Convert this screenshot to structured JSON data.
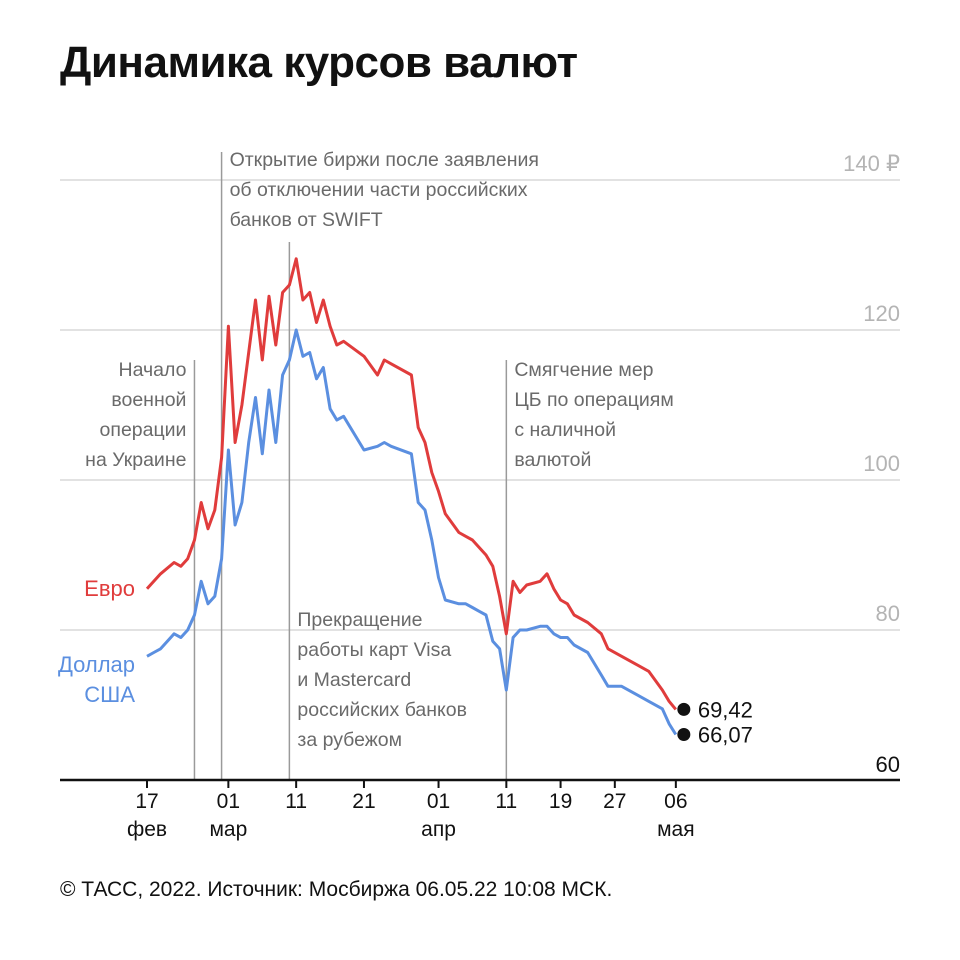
{
  "title": "Динамика курсов валют",
  "footer": "© ТАСС, 2022. Источник: Мосбиржа 06.05.22 10:08 МСК.",
  "colors": {
    "euro": "#e03c3c",
    "usd": "#5b8fe0",
    "grid": "#d8d8d8",
    "vline": "#9a9a9a",
    "axis": "#111111"
  },
  "chart_data": {
    "type": "line",
    "ylim": [
      60,
      140
    ],
    "yticks": [
      {
        "value": 140,
        "label": "140 ₽"
      },
      {
        "value": 120,
        "label": "120"
      },
      {
        "value": 100,
        "label": "100"
      },
      {
        "value": 80,
        "label": "80"
      },
      {
        "value": 60,
        "label": "60"
      }
    ],
    "xlim": [
      "2022-02-14",
      "2022-05-20"
    ],
    "xticks": [
      {
        "date": "2022-02-17",
        "day": "17",
        "month": "фев"
      },
      {
        "date": "2022-03-01",
        "day": "01",
        "month": "мар"
      },
      {
        "date": "2022-03-11",
        "day": "11",
        "month": ""
      },
      {
        "date": "2022-03-21",
        "day": "21",
        "month": ""
      },
      {
        "date": "2022-04-01",
        "day": "01",
        "month": "апр"
      },
      {
        "date": "2022-04-11",
        "day": "11",
        "month": ""
      },
      {
        "date": "2022-04-19",
        "day": "19",
        "month": ""
      },
      {
        "date": "2022-04-27",
        "day": "27",
        "month": ""
      },
      {
        "date": "2022-05-06",
        "day": "06",
        "month": "мая"
      }
    ],
    "series": [
      {
        "name": "Евро",
        "color": "#e03c3c",
        "end_label": "69,42",
        "points": [
          [
            "2022-02-17",
            85.5
          ],
          [
            "2022-02-18",
            86.5
          ],
          [
            "2022-02-19",
            87.5
          ],
          [
            "2022-02-21",
            89.0
          ],
          [
            "2022-02-22",
            88.5
          ],
          [
            "2022-02-23",
            89.5
          ],
          [
            "2022-02-24",
            92.0
          ],
          [
            "2022-02-25",
            97.0
          ],
          [
            "2022-02-26",
            93.5
          ],
          [
            "2022-02-27",
            96.0
          ],
          [
            "2022-02-28",
            103.0
          ],
          [
            "2022-03-01",
            120.5
          ],
          [
            "2022-03-02",
            105.0
          ],
          [
            "2022-03-03",
            110.0
          ],
          [
            "2022-03-04",
            117.0
          ],
          [
            "2022-03-05",
            124.0
          ],
          [
            "2022-03-06",
            116.0
          ],
          [
            "2022-03-07",
            124.5
          ],
          [
            "2022-03-08",
            118.0
          ],
          [
            "2022-03-09",
            125.0
          ],
          [
            "2022-03-10",
            126.0
          ],
          [
            "2022-03-11",
            129.5
          ],
          [
            "2022-03-12",
            124.0
          ],
          [
            "2022-03-13",
            125.0
          ],
          [
            "2022-03-14",
            121.0
          ],
          [
            "2022-03-15",
            124.0
          ],
          [
            "2022-03-16",
            120.5
          ],
          [
            "2022-03-17",
            118.0
          ],
          [
            "2022-03-18",
            118.5
          ],
          [
            "2022-03-21",
            116.5
          ],
          [
            "2022-03-23",
            114.0
          ],
          [
            "2022-03-24",
            116.0
          ],
          [
            "2022-03-25",
            115.5
          ],
          [
            "2022-03-28",
            114.0
          ],
          [
            "2022-03-29",
            107.0
          ],
          [
            "2022-03-30",
            105.0
          ],
          [
            "2022-03-31",
            101.0
          ],
          [
            "2022-04-01",
            98.5
          ],
          [
            "2022-04-02",
            95.5
          ],
          [
            "2022-04-04",
            93.0
          ],
          [
            "2022-04-05",
            92.5
          ],
          [
            "2022-04-06",
            92.0
          ],
          [
            "2022-04-07",
            91.0
          ],
          [
            "2022-04-08",
            90.0
          ],
          [
            "2022-04-09",
            88.5
          ],
          [
            "2022-04-10",
            84.5
          ],
          [
            "2022-04-11",
            79.5
          ],
          [
            "2022-04-12",
            86.5
          ],
          [
            "2022-04-13",
            85.0
          ],
          [
            "2022-04-14",
            86.0
          ],
          [
            "2022-04-16",
            86.5
          ],
          [
            "2022-04-17",
            87.5
          ],
          [
            "2022-04-18",
            85.5
          ],
          [
            "2022-04-19",
            84.0
          ],
          [
            "2022-04-20",
            83.5
          ],
          [
            "2022-04-21",
            82.0
          ],
          [
            "2022-04-23",
            81.0
          ],
          [
            "2022-04-25",
            79.5
          ],
          [
            "2022-04-26",
            77.5
          ],
          [
            "2022-04-28",
            76.5
          ],
          [
            "2022-04-30",
            75.5
          ],
          [
            "2022-05-02",
            74.5
          ],
          [
            "2022-05-04",
            72.0
          ],
          [
            "2022-05-05",
            70.5
          ],
          [
            "2022-05-06",
            69.42
          ]
        ]
      },
      {
        "name": "Доллар США",
        "color": "#5b8fe0",
        "end_label": "66,07",
        "points": [
          [
            "2022-02-17",
            76.5
          ],
          [
            "2022-02-18",
            77.0
          ],
          [
            "2022-02-19",
            77.5
          ],
          [
            "2022-02-21",
            79.5
          ],
          [
            "2022-02-22",
            79.0
          ],
          [
            "2022-02-23",
            80.0
          ],
          [
            "2022-02-24",
            82.0
          ],
          [
            "2022-02-25",
            86.5
          ],
          [
            "2022-02-26",
            83.5
          ],
          [
            "2022-02-27",
            84.5
          ],
          [
            "2022-02-28",
            89.5
          ],
          [
            "2022-03-01",
            104.0
          ],
          [
            "2022-03-02",
            94.0
          ],
          [
            "2022-03-03",
            97.0
          ],
          [
            "2022-03-04",
            105.0
          ],
          [
            "2022-03-05",
            111.0
          ],
          [
            "2022-03-06",
            103.5
          ],
          [
            "2022-03-07",
            112.0
          ],
          [
            "2022-03-08",
            105.0
          ],
          [
            "2022-03-09",
            114.0
          ],
          [
            "2022-03-10",
            116.0
          ],
          [
            "2022-03-11",
            120.0
          ],
          [
            "2022-03-12",
            116.5
          ],
          [
            "2022-03-13",
            117.0
          ],
          [
            "2022-03-14",
            113.5
          ],
          [
            "2022-03-15",
            115.0
          ],
          [
            "2022-03-16",
            109.5
          ],
          [
            "2022-03-17",
            108.0
          ],
          [
            "2022-03-18",
            108.5
          ],
          [
            "2022-03-21",
            104.0
          ],
          [
            "2022-03-23",
            104.5
          ],
          [
            "2022-03-24",
            105.0
          ],
          [
            "2022-03-25",
            104.5
          ],
          [
            "2022-03-28",
            103.5
          ],
          [
            "2022-03-29",
            97.0
          ],
          [
            "2022-03-30",
            96.0
          ],
          [
            "2022-03-31",
            92.0
          ],
          [
            "2022-04-01",
            87.0
          ],
          [
            "2022-04-02",
            84.0
          ],
          [
            "2022-04-04",
            83.5
          ],
          [
            "2022-04-05",
            83.5
          ],
          [
            "2022-04-06",
            83.0
          ],
          [
            "2022-04-07",
            82.5
          ],
          [
            "2022-04-08",
            82.0
          ],
          [
            "2022-04-09",
            78.5
          ],
          [
            "2022-04-10",
            77.5
          ],
          [
            "2022-04-11",
            72.0
          ],
          [
            "2022-04-12",
            79.0
          ],
          [
            "2022-04-13",
            80.0
          ],
          [
            "2022-04-14",
            80.0
          ],
          [
            "2022-04-16",
            80.5
          ],
          [
            "2022-04-17",
            80.5
          ],
          [
            "2022-04-18",
            79.5
          ],
          [
            "2022-04-19",
            79.0
          ],
          [
            "2022-04-20",
            79.0
          ],
          [
            "2022-04-21",
            78.0
          ],
          [
            "2022-04-23",
            77.0
          ],
          [
            "2022-04-25",
            74.0
          ],
          [
            "2022-04-26",
            72.5
          ],
          [
            "2022-04-28",
            72.5
          ],
          [
            "2022-04-30",
            71.5
          ],
          [
            "2022-05-02",
            70.5
          ],
          [
            "2022-05-04",
            69.5
          ],
          [
            "2022-05-05",
            67.5
          ],
          [
            "2022-05-06",
            66.07
          ]
        ]
      }
    ],
    "annotations": [
      {
        "date": "2022-02-24",
        "lines": [
          "Начало",
          "военной",
          "операции",
          "на Украине"
        ],
        "align": "right"
      },
      {
        "date": "2022-02-28",
        "lines": [
          "Открытие биржи после заявления",
          "об отключении части российских",
          "банков от SWIFT"
        ],
        "align": "left"
      },
      {
        "date": "2022-03-10",
        "lines": [
          "Прекращение",
          "работы карт Visa",
          "и Mastercard",
          "российских банков",
          "за рубежом"
        ],
        "align": "left"
      },
      {
        "date": "2022-04-11",
        "lines": [
          "Смягчение мер",
          "ЦБ по операциям",
          "с наличной",
          "валютой"
        ],
        "align": "left"
      }
    ],
    "series_labels": [
      {
        "series": "Евро",
        "lines": [
          "Евро"
        ]
      },
      {
        "series": "Доллар США",
        "lines": [
          "Доллар",
          "США"
        ]
      }
    ]
  }
}
